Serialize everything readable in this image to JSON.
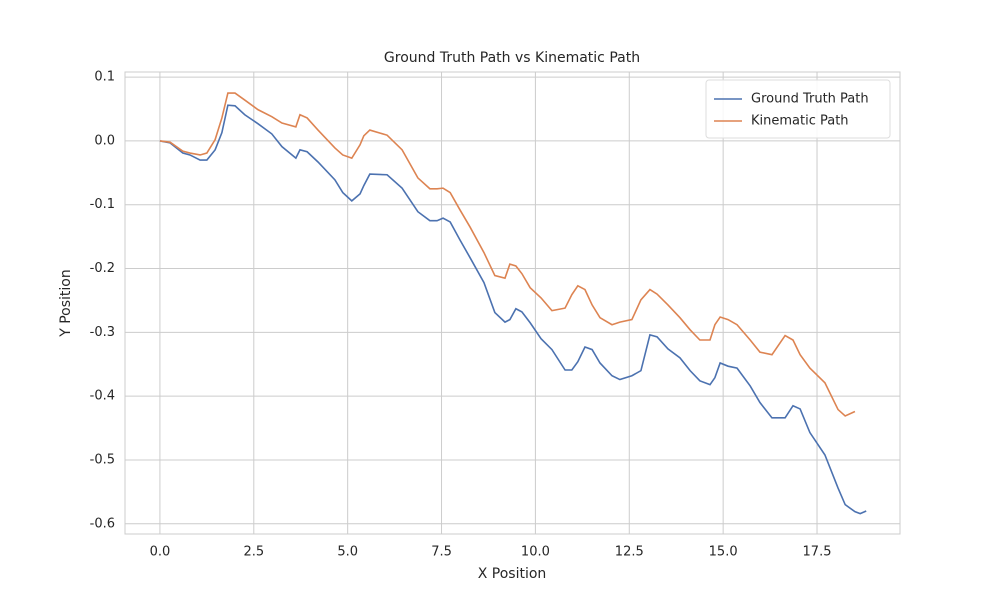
{
  "chart_data": {
    "type": "line",
    "title": "Ground Truth Path vs Kinematic Path",
    "x_label": "X Position",
    "y_label": "Y Position",
    "x": [
      0,
      0.27,
      0.61,
      0.8,
      1.07,
      1.25,
      1.47,
      1.65,
      1.81,
      2.0,
      2.26,
      2.61,
      2.98,
      3.25,
      3.62,
      3.73,
      3.92,
      4.21,
      4.66,
      4.87,
      5.11,
      5.33,
      5.43,
      5.59,
      6.05,
      6.45,
      6.87,
      7.19,
      7.38,
      7.54,
      7.73,
      7.99,
      8.26,
      8.63,
      8.92,
      9.19,
      9.32,
      9.48,
      9.64,
      9.86,
      10.15,
      10.44,
      10.79,
      10.97,
      11.13,
      11.32,
      11.51,
      11.72,
      12.04,
      12.25,
      12.57,
      12.81,
      13.05,
      13.24,
      13.53,
      13.85,
      14.12,
      14.38,
      14.65,
      14.78,
      14.92,
      15.13,
      15.37,
      15.72,
      15.98,
      16.3,
      16.65,
      16.86,
      17.05,
      17.31,
      17.71,
      18.06,
      18.25,
      18.51,
      18.65,
      18.81
    ],
    "series": [
      {
        "name": "Ground Truth Path",
        "color": "#4c72b0",
        "values": [
          0,
          -0.003,
          -0.019,
          -0.022,
          -0.03,
          -0.03,
          -0.014,
          0.013,
          0.056,
          0.055,
          0.041,
          0.027,
          0.011,
          -0.009,
          -0.027,
          -0.014,
          -0.017,
          -0.033,
          -0.061,
          -0.081,
          -0.094,
          -0.083,
          -0.07,
          -0.052,
          -0.053,
          -0.074,
          -0.111,
          -0.125,
          -0.125,
          -0.121,
          -0.127,
          -0.155,
          -0.183,
          -0.222,
          -0.269,
          -0.284,
          -0.28,
          -0.263,
          -0.268,
          -0.285,
          -0.31,
          -0.327,
          -0.359,
          -0.359,
          -0.346,
          -0.323,
          -0.327,
          -0.348,
          -0.368,
          -0.374,
          -0.368,
          -0.36,
          -0.304,
          -0.307,
          -0.326,
          -0.34,
          -0.36,
          -0.376,
          -0.382,
          -0.371,
          -0.348,
          -0.353,
          -0.356,
          -0.384,
          -0.41,
          -0.434,
          -0.434,
          -0.415,
          -0.42,
          -0.457,
          -0.492,
          -0.544,
          -0.57,
          -0.581,
          -0.584,
          -0.58
        ]
      },
      {
        "name": "Kinematic Path",
        "color": "#dd8452",
        "values": [
          0,
          -0.002,
          -0.016,
          -0.019,
          -0.022,
          -0.019,
          0.002,
          0.036,
          0.075,
          0.075,
          0.064,
          0.049,
          0.038,
          0.028,
          0.022,
          0.041,
          0.036,
          0.017,
          -0.011,
          -0.022,
          -0.027,
          -0.006,
          0.008,
          0.017,
          0.009,
          -0.014,
          -0.058,
          -0.075,
          -0.075,
          -0.074,
          -0.081,
          -0.108,
          -0.135,
          -0.175,
          -0.211,
          -0.215,
          -0.193,
          -0.196,
          -0.208,
          -0.23,
          -0.246,
          -0.266,
          -0.262,
          -0.241,
          -0.227,
          -0.233,
          -0.257,
          -0.277,
          -0.288,
          -0.284,
          -0.28,
          -0.249,
          -0.233,
          -0.24,
          -0.257,
          -0.277,
          -0.296,
          -0.312,
          -0.312,
          -0.288,
          -0.276,
          -0.28,
          -0.288,
          -0.312,
          -0.331,
          -0.335,
          -0.305,
          -0.312,
          -0.335,
          -0.356,
          -0.379,
          -0.421,
          -0.431,
          -0.424,
          null,
          null
        ]
      }
    ],
    "xlim": [
      -0.93,
      19.71
    ],
    "ylim": [
      -0.616,
      0.108
    ],
    "xticks": [
      {
        "value": 0,
        "label": "0.0"
      },
      2.5,
      {
        "value": 5,
        "label": "5.0"
      },
      7.5,
      {
        "value": 10,
        "label": "10.0"
      },
      12.5,
      {
        "value": 15,
        "label": "15.0"
      },
      17.5
    ],
    "yticks": [
      0.1,
      {
        "value": 0,
        "label": "0.0"
      },
      -0.1,
      -0.2,
      -0.3,
      -0.4,
      -0.5,
      -0.6
    ],
    "grid": true,
    "legend": "upper right"
  }
}
